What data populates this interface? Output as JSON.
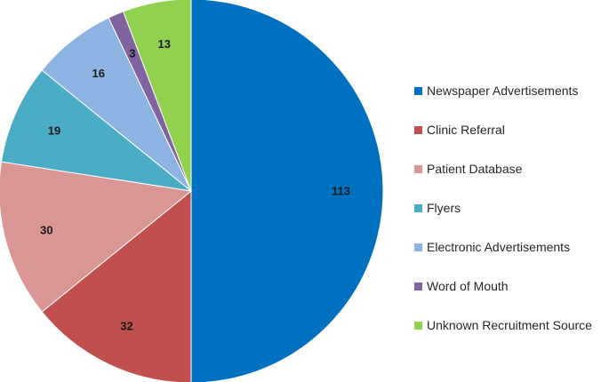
{
  "chart_data": {
    "type": "pie",
    "title": "",
    "legend_position": "right",
    "start_direction": "top",
    "rotation": "clockwise",
    "slices": [
      {
        "label": "Newspaper Advertisements",
        "value": 113,
        "display": "113",
        "color": "#0070c0"
      },
      {
        "label": "Clinic Referral",
        "value": 32,
        "display": "32",
        "color": "#c0504d"
      },
      {
        "label": "Patient Database",
        "value": 30,
        "display": "30",
        "color": "#d99694"
      },
      {
        "label": "Flyers",
        "value": 19,
        "display": "19",
        "color": "#4bacc6"
      },
      {
        "label": "Electronic Advertisements",
        "value": 16,
        "display": "16",
        "color": "#8db3e2"
      },
      {
        "label": "Word of Mouth",
        "value": 3,
        "display": "3",
        "color": "#8064a2"
      },
      {
        "label": "Unknown Recruitment Source",
        "value": 13,
        "display": "13",
        "color": "#92d050"
      }
    ]
  }
}
